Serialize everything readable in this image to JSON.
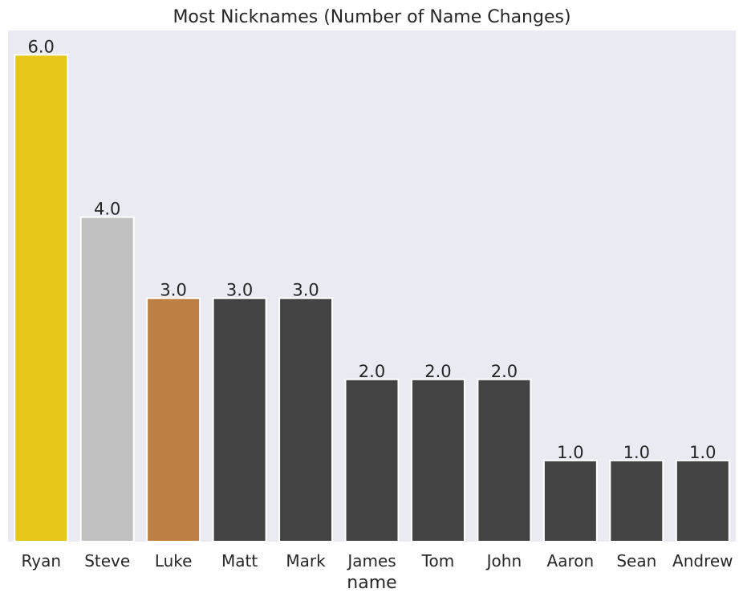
{
  "chart_data": {
    "type": "bar",
    "title": "Most Nicknames (Number of Name Changes)",
    "xlabel": "name",
    "ylabel": "",
    "ylim": [
      0,
      6.3
    ],
    "grid": false,
    "categories": [
      "Ryan",
      "Steve",
      "Luke",
      "Matt",
      "Mark",
      "James",
      "Tom",
      "John",
      "Aaron",
      "Sean",
      "Andrew"
    ],
    "values": [
      6.0,
      4.0,
      3.0,
      3.0,
      3.0,
      2.0,
      2.0,
      2.0,
      1.0,
      1.0,
      1.0
    ],
    "value_labels": [
      "6.0",
      "4.0",
      "3.0",
      "3.0",
      "3.0",
      "2.0",
      "2.0",
      "2.0",
      "1.0",
      "1.0",
      "1.0"
    ],
    "bar_colors": [
      "#e6c619",
      "#c0c0c0",
      "#bd7f43",
      "#434343",
      "#434343",
      "#434343",
      "#434343",
      "#434343",
      "#434343",
      "#434343",
      "#434343"
    ],
    "plot_background": "#eaeaf2",
    "bar_edge_color": "#ffffff"
  }
}
